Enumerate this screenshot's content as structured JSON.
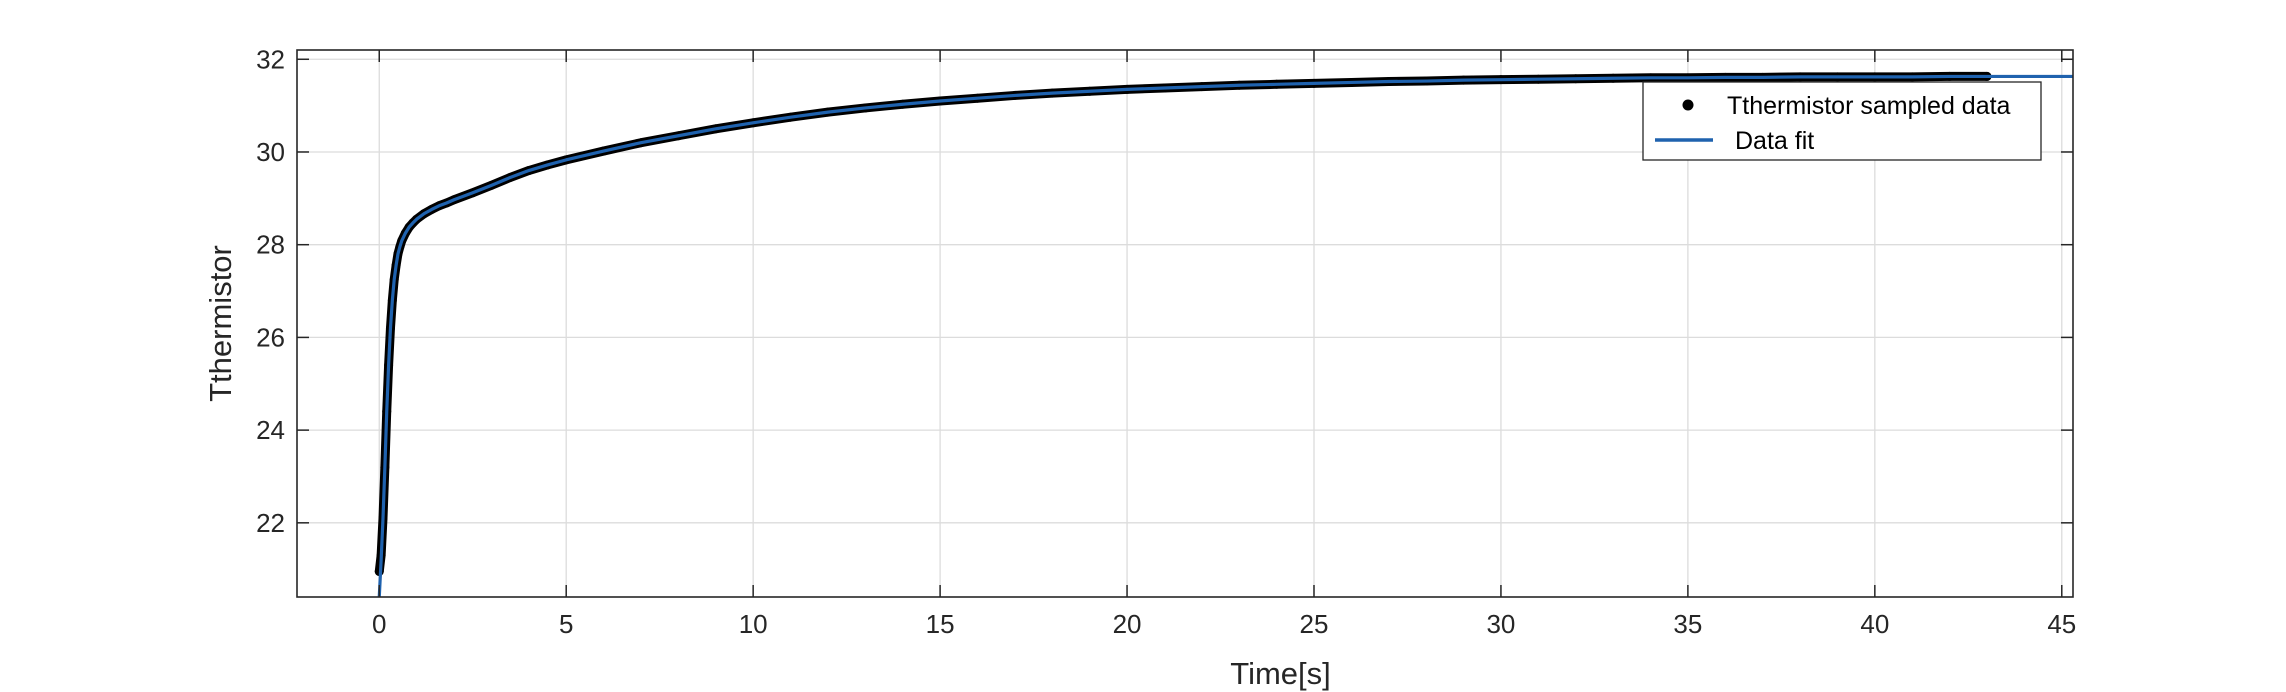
{
  "chart_data": {
    "type": "line",
    "xlabel": "Time[s]",
    "ylabel": "Tthermistor",
    "xlim": [
      -2.2,
      45.3
    ],
    "ylim": [
      20.4,
      32.2
    ],
    "xticks": [
      0,
      5,
      10,
      15,
      20,
      25,
      30,
      35,
      40,
      45
    ],
    "yticks": [
      22,
      24,
      26,
      28,
      30,
      32
    ],
    "grid": true,
    "box": true,
    "legend_location": "top-right",
    "series": [
      {
        "name": "Tthermistor sampled data",
        "style": "markers",
        "color": "#000000",
        "x": [
          0,
          0.05,
          0.1,
          0.15,
          0.2,
          0.25,
          0.3,
          0.35,
          0.4,
          0.45,
          0.5,
          0.55,
          0.6,
          0.7,
          0.8,
          0.9,
          1.0,
          1.2,
          1.4,
          1.6,
          1.8,
          2.0,
          2.5,
          3.0,
          3.5,
          4.0,
          4.5,
          5.0,
          6,
          7,
          8,
          9,
          10,
          11,
          12,
          13,
          14,
          15,
          16,
          17,
          18,
          19,
          20,
          21,
          22,
          23,
          24,
          25,
          26,
          27,
          28,
          29,
          30,
          31,
          32,
          33,
          34,
          35,
          36,
          37,
          38,
          39,
          40,
          41,
          42,
          43
        ],
        "y": [
          20.95,
          21.3,
          22.1,
          23.2,
          24.4,
          25.4,
          26.2,
          26.8,
          27.25,
          27.55,
          27.8,
          27.95,
          28.08,
          28.25,
          28.38,
          28.47,
          28.55,
          28.67,
          28.76,
          28.84,
          28.9,
          28.97,
          29.12,
          29.28,
          29.45,
          29.6,
          29.72,
          29.83,
          30.02,
          30.2,
          30.35,
          30.5,
          30.63,
          30.75,
          30.86,
          30.95,
          31.03,
          31.1,
          31.16,
          31.22,
          31.27,
          31.31,
          31.35,
          31.38,
          31.41,
          31.44,
          31.46,
          31.48,
          31.5,
          31.52,
          31.53,
          31.55,
          31.56,
          31.57,
          31.58,
          31.59,
          31.6,
          31.6,
          31.61,
          31.61,
          31.62,
          31.62,
          31.62,
          31.62,
          31.63,
          31.63
        ]
      },
      {
        "name": "Data fit",
        "style": "line",
        "color": "#1f62ae",
        "x": [
          0,
          0.05,
          0.1,
          0.15,
          0.2,
          0.25,
          0.3,
          0.35,
          0.4,
          0.45,
          0.5,
          0.55,
          0.6,
          0.7,
          0.8,
          0.9,
          1.0,
          1.2,
          1.4,
          1.6,
          1.8,
          2.0,
          2.5,
          3.0,
          3.5,
          4.0,
          4.5,
          5.0,
          6,
          7,
          8,
          9,
          10,
          11,
          12,
          13,
          14,
          15,
          16,
          17,
          18,
          19,
          20,
          21,
          22,
          23,
          24,
          25,
          26,
          27,
          28,
          29,
          30,
          31,
          32,
          33,
          34,
          35,
          36,
          37,
          38,
          39,
          40,
          41,
          42,
          43,
          44,
          45,
          45.3
        ],
        "y": [
          20.4,
          21.2,
          22.1,
          23.2,
          24.4,
          25.4,
          26.2,
          26.8,
          27.25,
          27.55,
          27.8,
          27.95,
          28.08,
          28.25,
          28.38,
          28.47,
          28.55,
          28.67,
          28.76,
          28.84,
          28.9,
          28.97,
          29.12,
          29.28,
          29.45,
          29.6,
          29.72,
          29.83,
          30.02,
          30.2,
          30.35,
          30.5,
          30.63,
          30.75,
          30.86,
          30.95,
          31.03,
          31.1,
          31.16,
          31.22,
          31.27,
          31.31,
          31.35,
          31.38,
          31.41,
          31.44,
          31.46,
          31.48,
          31.5,
          31.52,
          31.53,
          31.55,
          31.56,
          31.57,
          31.58,
          31.59,
          31.6,
          31.6,
          31.61,
          31.61,
          31.62,
          31.62,
          31.62,
          31.62,
          31.63,
          31.63,
          31.63,
          31.63,
          31.63
        ]
      }
    ]
  }
}
